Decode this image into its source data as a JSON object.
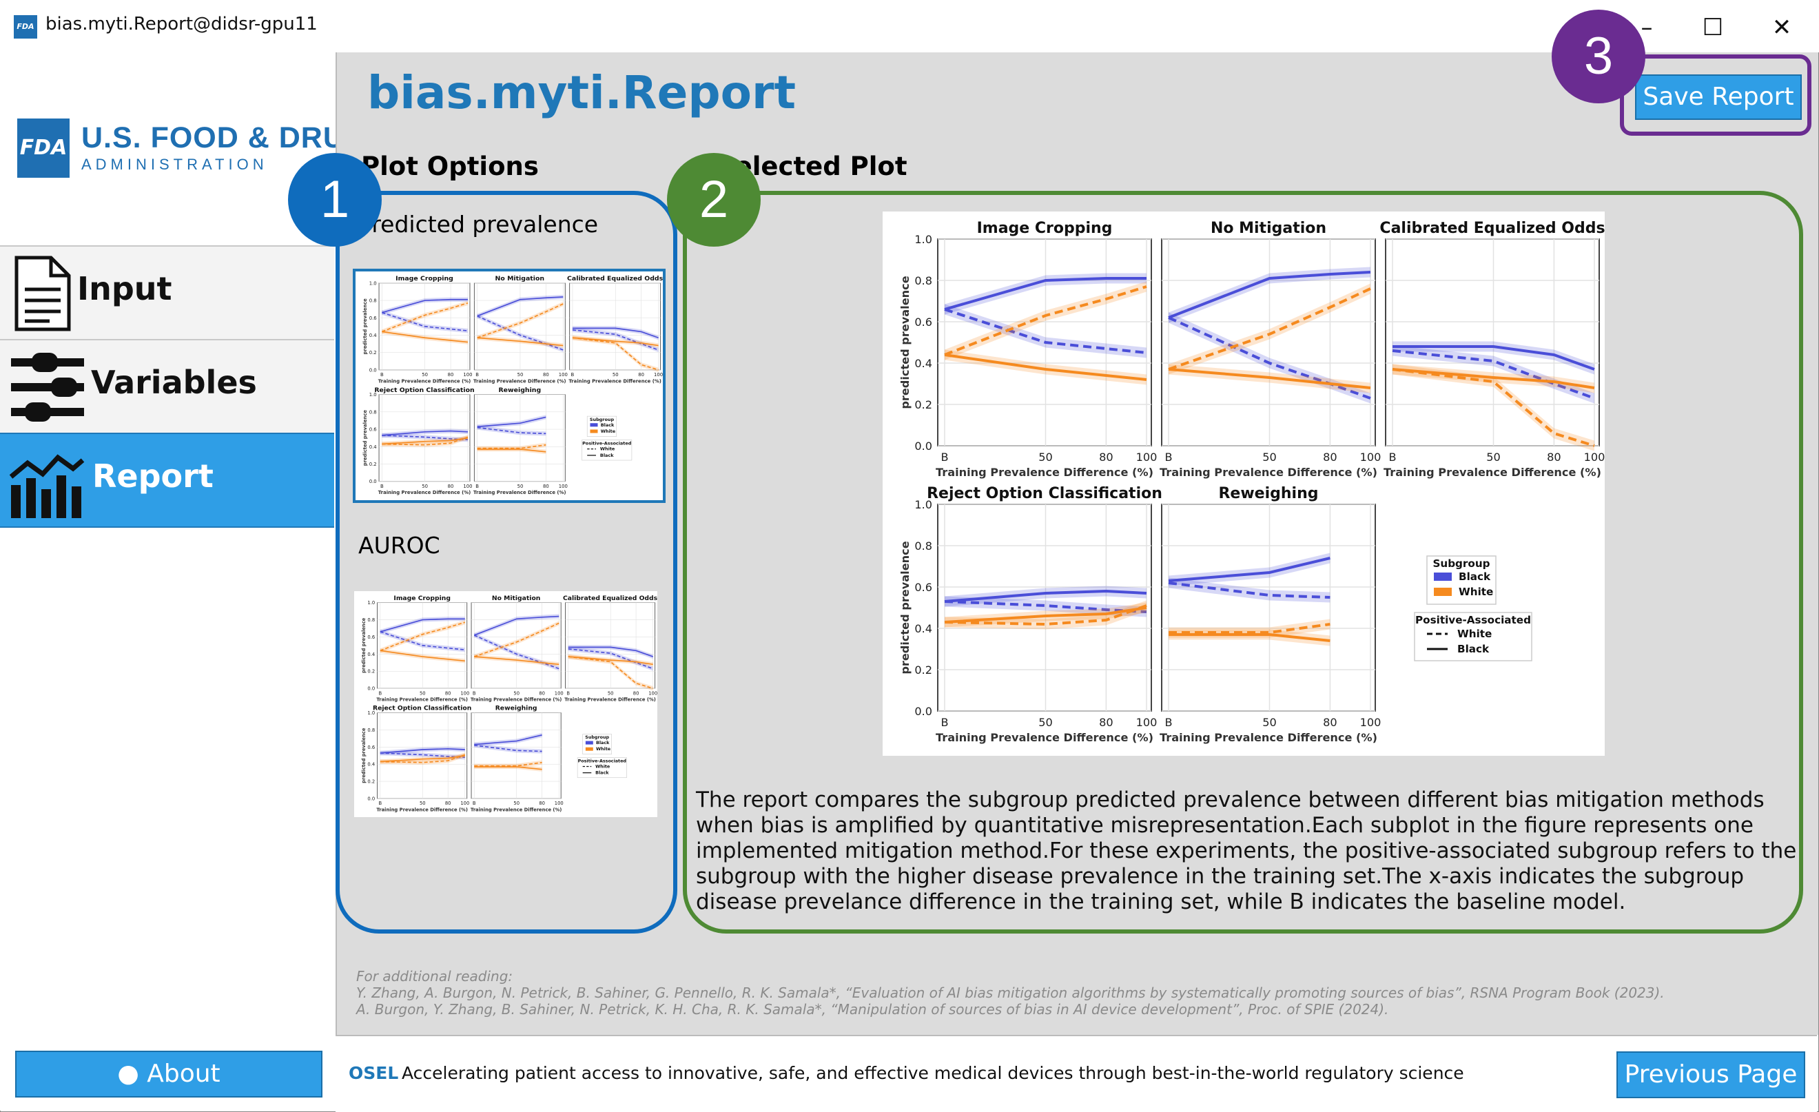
{
  "window": {
    "title": "bias.myti.Report@didsr-gpu11",
    "logo": "FDA",
    "minimize_icon": "–",
    "maximize_icon": "☐",
    "close_icon": "✕"
  },
  "brand": {
    "logo_mark": "FDA",
    "name": "U.S. FOOD & DRUG",
    "sub": "ADMINISTRATION",
    "color": "#1f6fb2"
  },
  "nav": [
    {
      "label": "Input",
      "icon": "document-icon"
    },
    {
      "label": "Variables",
      "icon": "sliders-icon"
    },
    {
      "label": "Report",
      "icon": "bar-chart-icon",
      "active": true
    }
  ],
  "about_label": "About",
  "page": {
    "title": "bias.myti.Report",
    "save_label": "Save Report"
  },
  "plot_options": {
    "heading": "Plot Options",
    "options": [
      {
        "label": "Predicted prevalence",
        "selected": true
      },
      {
        "label": "AUROC",
        "selected": false
      }
    ]
  },
  "selected_plot": {
    "heading": "Selected Plot"
  },
  "description": "The report compares the subgroup predicted prevalence between different bias mitigation methods when bias is amplified by quantitative misrepresentation.Each subplot in the figure represents one implemented mitigation method.For these experiments, the positive-associated subgroup refers to the subgroup with the higher disease prevalence in the training set.The x-axis indicates the subgroup disease prevelance difference in the training set, while B indicates the baseline model.",
  "reading": {
    "heading": "For additional reading:",
    "refs": [
      "Y. Zhang, A. Burgon, N. Petrick, B. Sahiner, G. Pennello, R. K. Samala*, “Evaluation of AI bias mitigation algorithms by systematically promoting sources of bias”, RSNA Program Book (2023).",
      "A. Burgon, Y. Zhang, B. Sahiner, N. Petrick, K. H. Cha, R. K. Samala*, “Manipulation of sources of bias in AI device development”, Proc. of SPIE (2024)."
    ]
  },
  "footer": {
    "osel": "OSEL",
    "tagline": "Accelerating patient access to innovative, safe, and effective medical devices through best-in-the-world regulatory science",
    "prev_label": "Previous Page"
  },
  "callouts": [
    {
      "num": "1",
      "color": "#0f6cbd"
    },
    {
      "num": "2",
      "color": "#4e8a34"
    },
    {
      "num": "3",
      "color": "#6a2c91"
    }
  ],
  "colors": {
    "accent": "#2f9ee6",
    "black_group": "#4a4ed8",
    "white_group": "#f58a1f"
  },
  "chart_data": {
    "type": "line",
    "ylabel": "predicted prevalence",
    "xlabel": "Training Prevalence Difference (%)",
    "x_ticks": [
      "B",
      "50",
      "80",
      "100"
    ],
    "y_ticks": [
      "0.0",
      "0.2",
      "0.4",
      "0.6",
      "0.8",
      "1.0"
    ],
    "ylim": [
      0,
      1
    ],
    "legend": {
      "subgroup_title": "Subgroup",
      "subgroups": [
        "Black",
        "White"
      ],
      "assoc_title": "Positive-Associated",
      "assoc": [
        "White",
        "Black"
      ]
    },
    "panels": [
      {
        "title": "Image Cropping",
        "x": [
          "B",
          "50",
          "80",
          "100"
        ],
        "series": [
          {
            "name": "Black",
            "style": "solid",
            "values": [
              0.66,
              0.8,
              0.81,
              0.81
            ]
          },
          {
            "name": "Black",
            "style": "dashed",
            "values": [
              0.66,
              0.5,
              0.47,
              0.45
            ]
          },
          {
            "name": "White",
            "style": "solid",
            "values": [
              0.44,
              0.37,
              0.34,
              0.32
            ]
          },
          {
            "name": "White",
            "style": "dashed",
            "values": [
              0.44,
              0.63,
              0.71,
              0.77
            ]
          }
        ]
      },
      {
        "title": "No Mitigation",
        "x": [
          "B",
          "50",
          "80",
          "100"
        ],
        "series": [
          {
            "name": "Black",
            "style": "solid",
            "values": [
              0.62,
              0.81,
              0.83,
              0.84
            ]
          },
          {
            "name": "Black",
            "style": "dashed",
            "values": [
              0.62,
              0.4,
              0.3,
              0.23
            ]
          },
          {
            "name": "White",
            "style": "solid",
            "values": [
              0.37,
              0.33,
              0.3,
              0.28
            ]
          },
          {
            "name": "White",
            "style": "dashed",
            "values": [
              0.37,
              0.54,
              0.67,
              0.76
            ]
          }
        ]
      },
      {
        "title": "Calibrated Equalized Odds",
        "x": [
          "B",
          "50",
          "80",
          "100"
        ],
        "series": [
          {
            "name": "Black",
            "style": "solid",
            "values": [
              0.48,
              0.48,
              0.44,
              0.37
            ]
          },
          {
            "name": "Black",
            "style": "dashed",
            "values": [
              0.46,
              0.41,
              0.3,
              0.23
            ]
          },
          {
            "name": "White",
            "style": "solid",
            "values": [
              0.37,
              0.33,
              0.31,
              0.28
            ]
          },
          {
            "name": "White",
            "style": "dashed",
            "values": [
              0.37,
              0.31,
              0.06,
              0.0
            ]
          }
        ]
      },
      {
        "title": "Reject Option Classification",
        "x": [
          "B",
          "50",
          "80",
          "100"
        ],
        "series": [
          {
            "name": "Black",
            "style": "solid",
            "values": [
              0.53,
              0.57,
              0.58,
              0.57
            ]
          },
          {
            "name": "Black",
            "style": "dashed",
            "values": [
              0.53,
              0.51,
              0.49,
              0.48
            ]
          },
          {
            "name": "White",
            "style": "solid",
            "values": [
              0.43,
              0.46,
              0.47,
              0.5
            ]
          },
          {
            "name": "White",
            "style": "dashed",
            "values": [
              0.43,
              0.42,
              0.44,
              0.51
            ]
          }
        ]
      },
      {
        "title": "Reweighing",
        "x": [
          "B",
          "50",
          "80"
        ],
        "series": [
          {
            "name": "Black",
            "style": "solid",
            "values": [
              0.63,
              0.67,
              0.74
            ]
          },
          {
            "name": "Black",
            "style": "dashed",
            "values": [
              0.62,
              0.56,
              0.55
            ]
          },
          {
            "name": "White",
            "style": "solid",
            "values": [
              0.37,
              0.37,
              0.34
            ]
          },
          {
            "name": "White",
            "style": "dashed",
            "values": [
              0.38,
              0.38,
              0.42
            ]
          }
        ]
      }
    ]
  }
}
